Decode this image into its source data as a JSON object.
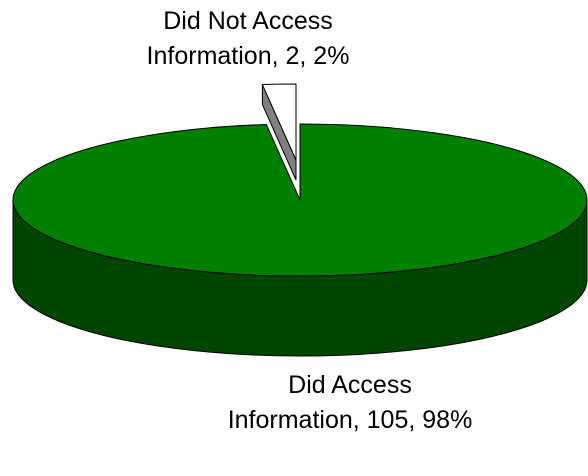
{
  "chart_data": {
    "type": "pie",
    "categories": [
      "Did Not Access Information",
      "Did Access Information"
    ],
    "values": [
      2,
      105
    ],
    "value_labels": [
      "Did Not Access Information, 2, 2%",
      "Did Access Information, 105, 98%"
    ],
    "colors": [
      "#ffffff",
      "#008000"
    ]
  }
}
